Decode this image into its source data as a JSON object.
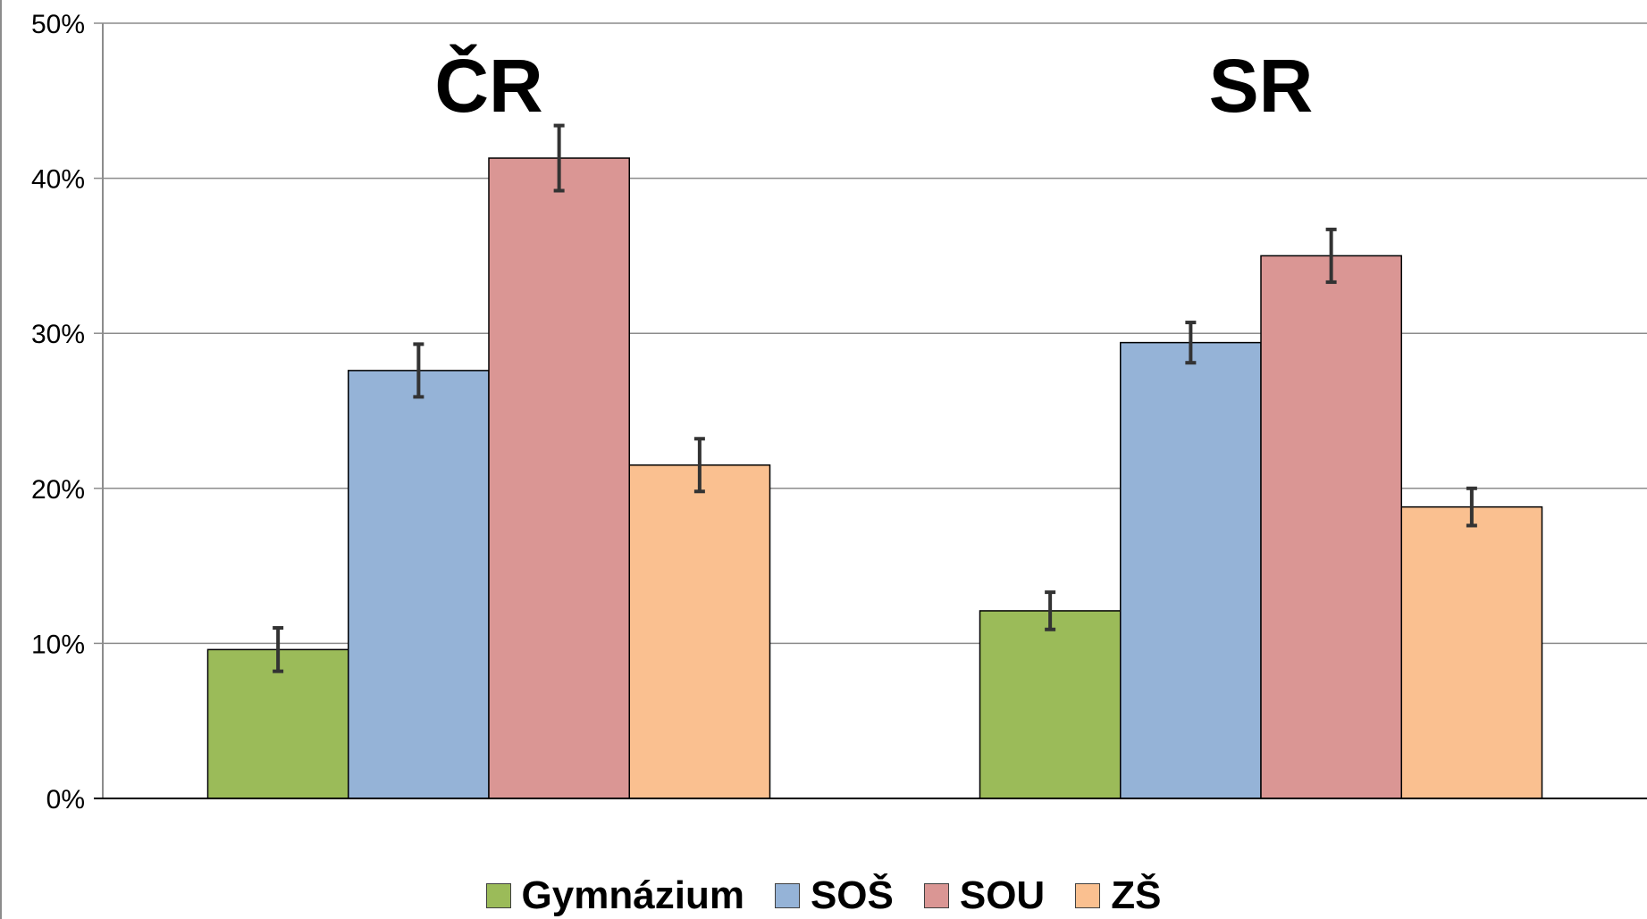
{
  "chart_data": {
    "type": "bar",
    "title": "",
    "xlabel": "",
    "ylabel": "",
    "ylim": [
      0,
      50
    ],
    "yticks": [
      "0%",
      "10%",
      "20%",
      "30%",
      "40%",
      "50%"
    ],
    "grid": true,
    "legend_position": "bottom",
    "categories": [
      "ČR",
      "SR"
    ],
    "series": [
      {
        "name": "Gymnázium",
        "color": "#9bbb59",
        "values": [
          9.6,
          12.1
        ],
        "error": [
          1.4,
          1.2
        ]
      },
      {
        "name": "SOŠ",
        "color": "#95b3d7",
        "values": [
          27.6,
          29.4
        ],
        "error": [
          1.7,
          1.3
        ]
      },
      {
        "name": "SOU",
        "color": "#da9694",
        "values": [
          41.3,
          35.0
        ],
        "error": [
          2.1,
          1.7
        ]
      },
      {
        "name": "ZŠ",
        "color": "#fac090",
        "values": [
          21.5,
          18.8
        ],
        "error": [
          1.7,
          1.2
        ]
      }
    ]
  }
}
